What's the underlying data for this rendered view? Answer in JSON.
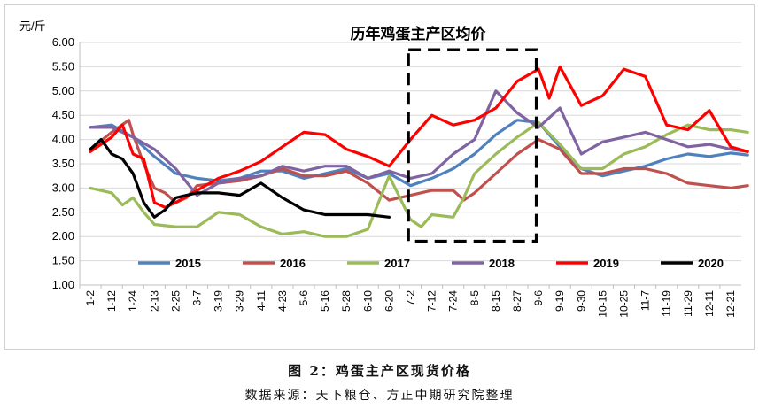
{
  "caption": {
    "figure_title": "图 2：鸡蛋主产区现货价格",
    "source": "数据来源：天下粮仓、方正中期研究院整理"
  },
  "chart_data": {
    "type": "line",
    "title": "历年鸡蛋主产区均价",
    "ylabel": "元/斤",
    "xlabel": "",
    "ylim": [
      1.0,
      6.0
    ],
    "yticks": [
      "1.00",
      "1.50",
      "2.00",
      "2.50",
      "3.00",
      "3.50",
      "4.00",
      "4.50",
      "5.00",
      "5.50",
      "6.00"
    ],
    "categories": [
      "1-2",
      "1-12",
      "1-24",
      "2-13",
      "2-25",
      "3-7",
      "3-19",
      "3-29",
      "4-11",
      "4-23",
      "5-6",
      "5-16",
      "5-28",
      "6-10",
      "6-20",
      "7-2",
      "7-12",
      "7-24",
      "8-5",
      "8-15",
      "8-27",
      "9-6",
      "9-19",
      "9-30",
      "10-15",
      "10-25",
      "11-7",
      "11-19",
      "11-29",
      "12-11",
      "12-21"
    ],
    "highlight_box": {
      "from_category": "7-2",
      "to_category": "9-6",
      "y_from": 1.9,
      "y_to": 5.85,
      "style": "dashed"
    },
    "series": [
      {
        "name": "2015",
        "color": "#4f81bd",
        "points": [
          [
            0,
            4.25
          ],
          [
            1,
            4.3
          ],
          [
            2,
            4.05
          ],
          [
            3,
            3.65
          ],
          [
            4,
            3.3
          ],
          [
            5,
            3.2
          ],
          [
            6,
            3.15
          ],
          [
            7,
            3.2
          ],
          [
            8,
            3.35
          ],
          [
            9,
            3.35
          ],
          [
            10,
            3.2
          ],
          [
            11,
            3.3
          ],
          [
            12,
            3.4
          ],
          [
            13,
            3.2
          ],
          [
            14,
            3.3
          ],
          [
            15,
            3.05
          ],
          [
            16,
            3.2
          ],
          [
            17,
            3.4
          ],
          [
            18,
            3.7
          ],
          [
            19,
            4.1
          ],
          [
            20,
            4.4
          ],
          [
            21,
            4.35
          ],
          [
            22,
            3.85
          ],
          [
            23,
            3.4
          ],
          [
            24,
            3.25
          ],
          [
            25,
            3.35
          ],
          [
            26,
            3.45
          ],
          [
            27,
            3.6
          ],
          [
            28,
            3.7
          ],
          [
            29,
            3.65
          ],
          [
            30,
            3.72
          ],
          [
            30.8,
            3.68
          ]
        ]
      },
      {
        "name": "2016",
        "color": "#c0504d",
        "points": [
          [
            0,
            3.8
          ],
          [
            1,
            4.15
          ],
          [
            1.8,
            4.4
          ],
          [
            2,
            4.1
          ],
          [
            2.5,
            3.5
          ],
          [
            3,
            3.0
          ],
          [
            3.5,
            2.9
          ],
          [
            4,
            2.7
          ],
          [
            4.5,
            2.8
          ],
          [
            5,
            3.05
          ],
          [
            6,
            3.1
          ],
          [
            7,
            3.15
          ],
          [
            8,
            3.25
          ],
          [
            9,
            3.4
          ],
          [
            10,
            3.25
          ],
          [
            11,
            3.25
          ],
          [
            12,
            3.35
          ],
          [
            13,
            3.1
          ],
          [
            14,
            2.75
          ],
          [
            15,
            2.85
          ],
          [
            16,
            2.95
          ],
          [
            17,
            2.95
          ],
          [
            17.5,
            2.75
          ],
          [
            18,
            2.9
          ],
          [
            19,
            3.3
          ],
          [
            20,
            3.7
          ],
          [
            21,
            4.0
          ],
          [
            22,
            3.8
          ],
          [
            23,
            3.3
          ],
          [
            24,
            3.3
          ],
          [
            25,
            3.4
          ],
          [
            26,
            3.4
          ],
          [
            27,
            3.3
          ],
          [
            28,
            3.1
          ],
          [
            29,
            3.05
          ],
          [
            30,
            3.0
          ],
          [
            30.8,
            3.05
          ]
        ]
      },
      {
        "name": "2017",
        "color": "#9bbb59",
        "points": [
          [
            0,
            3.0
          ],
          [
            1,
            2.9
          ],
          [
            1.5,
            2.65
          ],
          [
            2,
            2.8
          ],
          [
            2.5,
            2.5
          ],
          [
            3,
            2.25
          ],
          [
            4,
            2.2
          ],
          [
            5,
            2.2
          ],
          [
            6,
            2.5
          ],
          [
            7,
            2.45
          ],
          [
            8,
            2.2
          ],
          [
            9,
            2.05
          ],
          [
            10,
            2.1
          ],
          [
            11,
            2.0
          ],
          [
            12,
            2.0
          ],
          [
            13,
            2.15
          ],
          [
            14,
            3.25
          ],
          [
            15,
            2.35
          ],
          [
            15.5,
            2.2
          ],
          [
            16,
            2.45
          ],
          [
            17,
            2.4
          ],
          [
            17.5,
            2.8
          ],
          [
            18,
            3.3
          ],
          [
            19,
            3.7
          ],
          [
            20,
            4.05
          ],
          [
            21,
            4.35
          ],
          [
            22,
            3.9
          ],
          [
            23,
            3.4
          ],
          [
            24,
            3.4
          ],
          [
            25,
            3.7
          ],
          [
            26,
            3.85
          ],
          [
            27,
            4.1
          ],
          [
            28,
            4.3
          ],
          [
            29,
            4.2
          ],
          [
            30,
            4.2
          ],
          [
            30.8,
            4.15
          ]
        ]
      },
      {
        "name": "2018",
        "color": "#8064a2",
        "points": [
          [
            0,
            4.25
          ],
          [
            1,
            4.25
          ],
          [
            2,
            4.05
          ],
          [
            3,
            3.8
          ],
          [
            4,
            3.4
          ],
          [
            5,
            2.85
          ],
          [
            6,
            3.1
          ],
          [
            7,
            3.2
          ],
          [
            8,
            3.25
          ],
          [
            9,
            3.45
          ],
          [
            10,
            3.35
          ],
          [
            11,
            3.45
          ],
          [
            12,
            3.45
          ],
          [
            13,
            3.2
          ],
          [
            14,
            3.35
          ],
          [
            15,
            3.2
          ],
          [
            16,
            3.3
          ],
          [
            17,
            3.7
          ],
          [
            18,
            4.0
          ],
          [
            19,
            5.0
          ],
          [
            20,
            4.55
          ],
          [
            21,
            4.25
          ],
          [
            22,
            4.65
          ],
          [
            23,
            3.7
          ],
          [
            24,
            3.95
          ],
          [
            25,
            4.05
          ],
          [
            26,
            4.15
          ],
          [
            27,
            4.0
          ],
          [
            28,
            3.85
          ],
          [
            29,
            3.9
          ],
          [
            30,
            3.8
          ],
          [
            30.8,
            3.75
          ]
        ]
      },
      {
        "name": "2019",
        "color": "#ff0000",
        "points": [
          [
            0,
            3.75
          ],
          [
            1,
            4.05
          ],
          [
            1.5,
            4.3
          ],
          [
            2,
            3.7
          ],
          [
            2.5,
            3.6
          ],
          [
            3,
            2.7
          ],
          [
            3.5,
            2.6
          ],
          [
            4,
            2.7
          ],
          [
            5,
            2.95
          ],
          [
            6,
            3.2
          ],
          [
            7,
            3.35
          ],
          [
            8,
            3.55
          ],
          [
            9,
            3.85
          ],
          [
            10,
            4.15
          ],
          [
            11,
            4.1
          ],
          [
            12,
            3.8
          ],
          [
            13,
            3.65
          ],
          [
            14,
            3.45
          ],
          [
            15,
            4.0
          ],
          [
            16,
            4.5
          ],
          [
            17,
            4.3
          ],
          [
            18,
            4.4
          ],
          [
            19,
            4.65
          ],
          [
            20,
            5.2
          ],
          [
            21,
            5.45
          ],
          [
            21.5,
            4.85
          ],
          [
            22,
            5.5
          ],
          [
            23,
            4.7
          ],
          [
            24,
            4.9
          ],
          [
            25,
            5.45
          ],
          [
            26,
            5.3
          ],
          [
            27,
            4.3
          ],
          [
            28,
            4.2
          ],
          [
            29,
            4.6
          ],
          [
            30,
            3.85
          ],
          [
            30.8,
            3.75
          ]
        ]
      },
      {
        "name": "2020",
        "color": "#000000",
        "points": [
          [
            0,
            3.8
          ],
          [
            0.5,
            4.0
          ],
          [
            1,
            3.7
          ],
          [
            1.5,
            3.6
          ],
          [
            2,
            3.3
          ],
          [
            2.5,
            2.7
          ],
          [
            3,
            2.4
          ],
          [
            3.5,
            2.55
          ],
          [
            4,
            2.8
          ],
          [
            4.5,
            2.85
          ],
          [
            5,
            2.9
          ],
          [
            6,
            2.9
          ],
          [
            7,
            2.85
          ],
          [
            8,
            3.1
          ],
          [
            9,
            2.8
          ],
          [
            10,
            2.55
          ],
          [
            11,
            2.45
          ],
          [
            12,
            2.45
          ],
          [
            13,
            2.45
          ],
          [
            14,
            2.4
          ]
        ]
      }
    ]
  }
}
